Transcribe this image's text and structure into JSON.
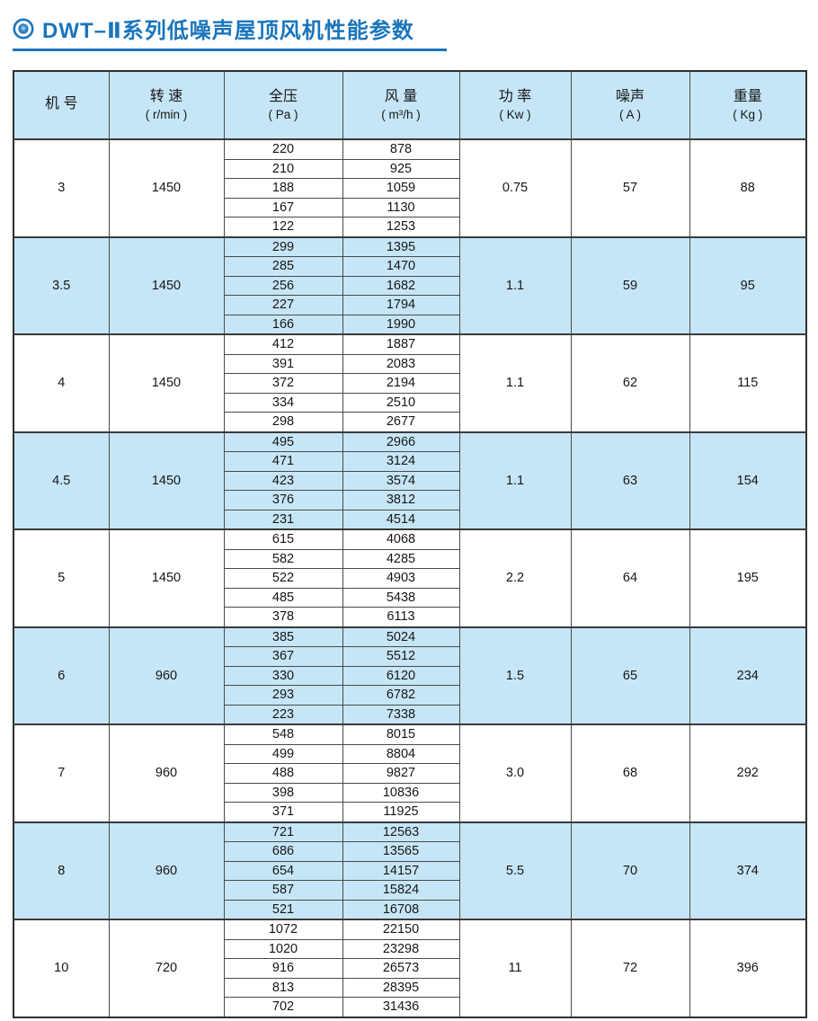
{
  "title": {
    "icon": "bullseye-icon",
    "text": "DWT–Ⅱ系列低噪声屋顶风机性能参数",
    "accent_color": "#1a75bc"
  },
  "colors": {
    "accent_blue": "#1a75bc",
    "row_highlight_blue": "#c6e6f7",
    "table_border": "#3a3a3a",
    "text": "#161616",
    "background": "#ffffff"
  },
  "table": {
    "columns": [
      {
        "label": "机 号",
        "unit": ""
      },
      {
        "label": "转 速",
        "unit": "( r/min )"
      },
      {
        "label": "全压",
        "unit": "( Pa )"
      },
      {
        "label": "风 量",
        "unit": "( m³/h )"
      },
      {
        "label": "功 率",
        "unit": "( Kw )"
      },
      {
        "label": "噪声",
        "unit": "( A )"
      },
      {
        "label": "重量",
        "unit": "( Kg )"
      }
    ],
    "groups": [
      {
        "model": "3",
        "speed": "1450",
        "power": "0.75",
        "noise": "57",
        "weight": "88",
        "rows": [
          {
            "pressure": "220",
            "volume": "878"
          },
          {
            "pressure": "210",
            "volume": "925"
          },
          {
            "pressure": "188",
            "volume": "1059"
          },
          {
            "pressure": "167",
            "volume": "1130"
          },
          {
            "pressure": "122",
            "volume": "1253"
          }
        ]
      },
      {
        "model": "3.5",
        "speed": "1450",
        "power": "1.1",
        "noise": "59",
        "weight": "95",
        "rows": [
          {
            "pressure": "299",
            "volume": "1395"
          },
          {
            "pressure": "285",
            "volume": "1470"
          },
          {
            "pressure": "256",
            "volume": "1682"
          },
          {
            "pressure": "227",
            "volume": "1794"
          },
          {
            "pressure": "166",
            "volume": "1990"
          }
        ]
      },
      {
        "model": "4",
        "speed": "1450",
        "power": "1.1",
        "noise": "62",
        "weight": "115",
        "rows": [
          {
            "pressure": "412",
            "volume": "1887"
          },
          {
            "pressure": "391",
            "volume": "2083"
          },
          {
            "pressure": "372",
            "volume": "2194"
          },
          {
            "pressure": "334",
            "volume": "2510"
          },
          {
            "pressure": "298",
            "volume": "2677"
          }
        ]
      },
      {
        "model": "4.5",
        "speed": "1450",
        "power": "1.1",
        "noise": "63",
        "weight": "154",
        "rows": [
          {
            "pressure": "495",
            "volume": "2966"
          },
          {
            "pressure": "471",
            "volume": "3124"
          },
          {
            "pressure": "423",
            "volume": "3574"
          },
          {
            "pressure": "376",
            "volume": "3812"
          },
          {
            "pressure": "231",
            "volume": "4514"
          }
        ]
      },
      {
        "model": "5",
        "speed": "1450",
        "power": "2.2",
        "noise": "64",
        "weight": "195",
        "rows": [
          {
            "pressure": "615",
            "volume": "4068"
          },
          {
            "pressure": "582",
            "volume": "4285"
          },
          {
            "pressure": "522",
            "volume": "4903"
          },
          {
            "pressure": "485",
            "volume": "5438"
          },
          {
            "pressure": "378",
            "volume": "6113"
          }
        ]
      },
      {
        "model": "6",
        "speed": "960",
        "power": "1.5",
        "noise": "65",
        "weight": "234",
        "rows": [
          {
            "pressure": "385",
            "volume": "5024"
          },
          {
            "pressure": "367",
            "volume": "5512"
          },
          {
            "pressure": "330",
            "volume": "6120"
          },
          {
            "pressure": "293",
            "volume": "6782"
          },
          {
            "pressure": "223",
            "volume": "7338"
          }
        ]
      },
      {
        "model": "7",
        "speed": "960",
        "power": "3.0",
        "noise": "68",
        "weight": "292",
        "rows": [
          {
            "pressure": "548",
            "volume": "8015"
          },
          {
            "pressure": "499",
            "volume": "8804"
          },
          {
            "pressure": "488",
            "volume": "9827"
          },
          {
            "pressure": "398",
            "volume": "10836"
          },
          {
            "pressure": "371",
            "volume": "11925"
          }
        ]
      },
      {
        "model": "8",
        "speed": "960",
        "power": "5.5",
        "noise": "70",
        "weight": "374",
        "rows": [
          {
            "pressure": "721",
            "volume": "12563"
          },
          {
            "pressure": "686",
            "volume": "13565"
          },
          {
            "pressure": "654",
            "volume": "14157"
          },
          {
            "pressure": "587",
            "volume": "15824"
          },
          {
            "pressure": "521",
            "volume": "16708"
          }
        ]
      },
      {
        "model": "10",
        "speed": "720",
        "power": "11",
        "noise": "72",
        "weight": "396",
        "rows": [
          {
            "pressure": "1072",
            "volume": "22150"
          },
          {
            "pressure": "1020",
            "volume": "23298"
          },
          {
            "pressure": "916",
            "volume": "26573"
          },
          {
            "pressure": "813",
            "volume": "28395"
          },
          {
            "pressure": "702",
            "volume": "31436"
          }
        ]
      }
    ]
  }
}
